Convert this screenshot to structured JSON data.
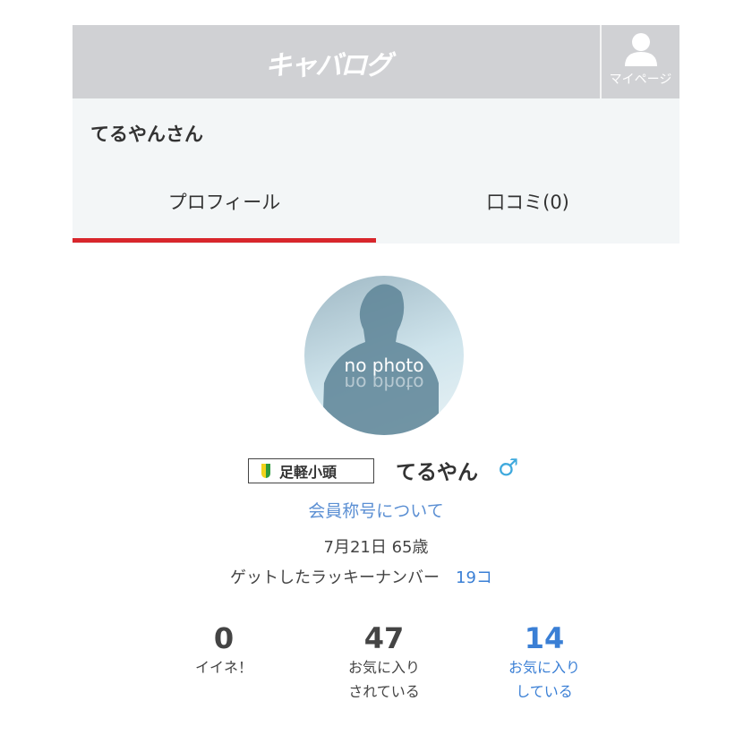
{
  "header": {
    "logo": "キャバログ",
    "mypage_label": "マイページ"
  },
  "user": {
    "title": "てるやんさん",
    "name": "てるやん",
    "gender_icon": "♂",
    "badge": "足軽小頭",
    "rank_link": "会員称号について",
    "birthday_age": "7月21日 65歳",
    "lucky_label": "ゲットしたラッキーナンバー",
    "lucky_count": "19コ"
  },
  "tabs": [
    {
      "label": "プロフィール",
      "active": true
    },
    {
      "label": "口コミ(0)",
      "active": false
    }
  ],
  "avatar": {
    "text": "no photo"
  },
  "stats": [
    {
      "value": "0",
      "label1": "イイネ！",
      "label2": ""
    },
    {
      "value": "47",
      "label1": "お気に入り",
      "label2": "されている"
    },
    {
      "value": "14",
      "label1": "お気に入り",
      "label2": "している"
    }
  ],
  "colors": {
    "accent": "#d8262c",
    "link": "#3a7fd5",
    "header_bg": "#d0d1d4"
  }
}
